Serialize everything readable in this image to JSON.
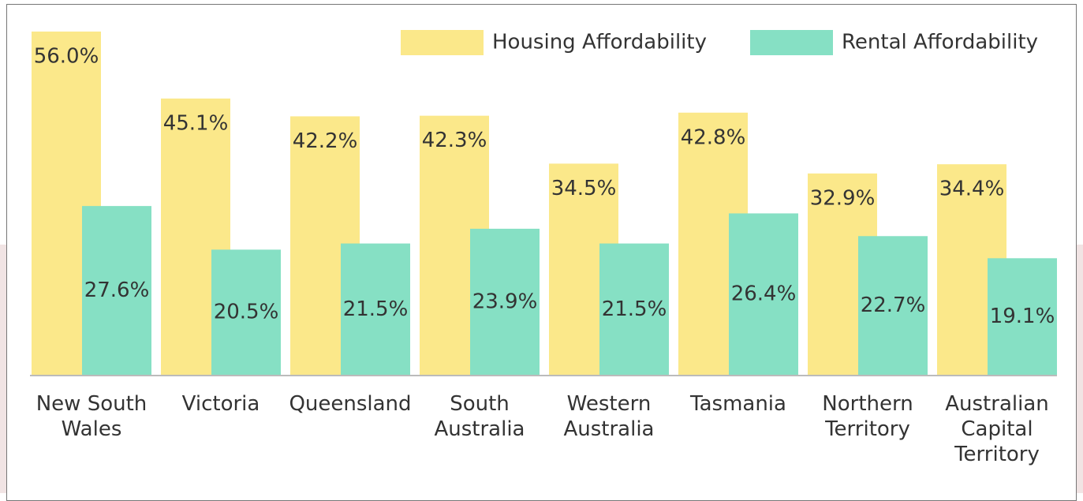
{
  "chart_data": {
    "type": "bar",
    "categories": [
      "New South Wales",
      "Victoria",
      "Queensland",
      "South Australia",
      "Western Australia",
      "Tasmania",
      "Northern Territory",
      "Australian Capital Territory"
    ],
    "series": [
      {
        "name": "Housing Affordability",
        "color": "#fbe88a",
        "values": [
          56.0,
          45.1,
          42.2,
          42.3,
          34.5,
          42.8,
          32.9,
          34.4
        ],
        "value_labels": [
          "56.0%",
          "45.1%",
          "42.2%",
          "42.3%",
          "34.5%",
          "42.8%",
          "32.9%",
          "34.4%"
        ]
      },
      {
        "name": "Rental Affordability",
        "color": "#86e0c4",
        "values": [
          27.6,
          20.5,
          21.5,
          23.9,
          21.5,
          26.4,
          22.7,
          19.1
        ],
        "value_labels": [
          "27.6%",
          "20.5%",
          "21.5%",
          "23.9%",
          "21.5%",
          "26.4%",
          "22.7%",
          "19.1%"
        ]
      }
    ],
    "legend": "top-right"
  }
}
